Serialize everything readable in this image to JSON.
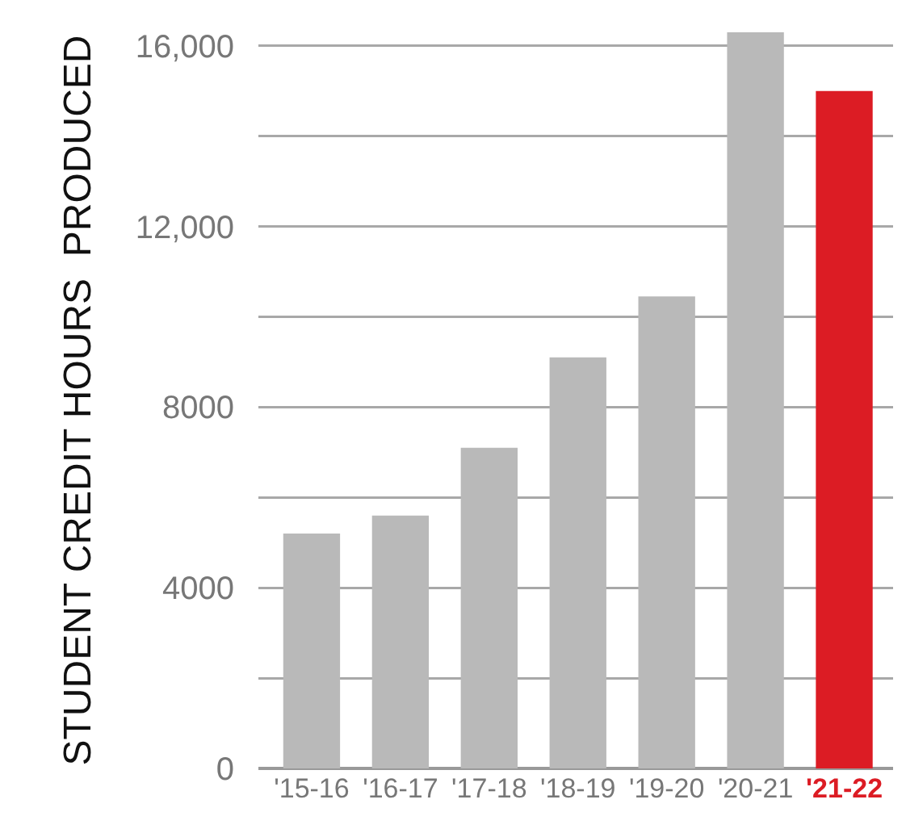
{
  "chart_data": {
    "type": "bar",
    "ylabel": "STUDENT CREDIT HOURS  PRODUCED",
    "categories": [
      "'15-16",
      "'16-17",
      "'17-18",
      "'18-19",
      "'19-20",
      "'20-21",
      "'21-22"
    ],
    "values": [
      5200,
      5600,
      7100,
      9100,
      10450,
      16300,
      15000
    ],
    "colors": [
      "#b9b9b9",
      "#b9b9b9",
      "#b9b9b9",
      "#b9b9b9",
      "#b9b9b9",
      "#b9b9b9",
      "#dc1c24"
    ],
    "ylim": [
      0,
      16300
    ],
    "yticks": [
      0,
      {
        "value": 2000,
        "label": null
      },
      4000,
      {
        "value": 6000,
        "label": null
      },
      8000,
      {
        "value": 10000,
        "label": null
      },
      {
        "value": 12000,
        "label": "12,000"
      },
      {
        "value": 14000,
        "label": null
      },
      {
        "value": 16000,
        "label": "16,000"
      }
    ],
    "grid": "y"
  }
}
